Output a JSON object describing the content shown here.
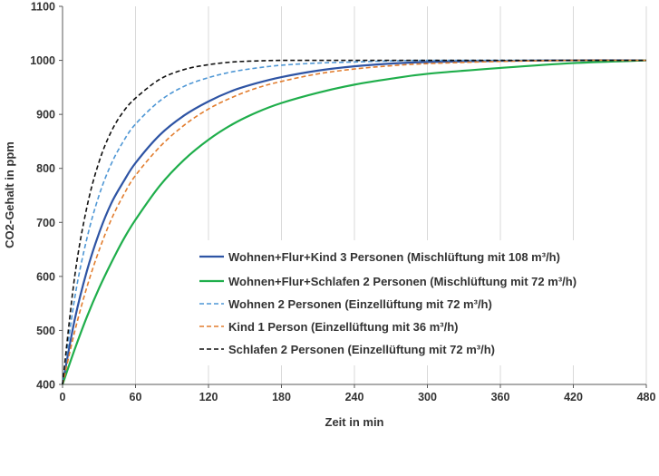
{
  "chart_data": {
    "type": "line",
    "title": "",
    "xlabel": "Zeit in min",
    "ylabel": "CO2-Gehalt in ppm",
    "xlim": [
      0,
      480
    ],
    "ylim": [
      400,
      1100
    ],
    "xticks": [
      0,
      60,
      120,
      180,
      240,
      300,
      360,
      420,
      480
    ],
    "yticks": [
      400,
      500,
      600,
      700,
      800,
      900,
      1000,
      1100
    ],
    "grid": {
      "vertical": true,
      "horizontal": false
    },
    "legend_position": "bottom-right",
    "series": [
      {
        "name": "Wohnen+Flur+Kind 3 Personen (Mischlüftung mit 108 m³/h)",
        "color": "#2e54a4",
        "style": "solid",
        "x": [
          0,
          10,
          20,
          30,
          40,
          50,
          60,
          80,
          100,
          120,
          140,
          160,
          180,
          210,
          240,
          270,
          300,
          360,
          420,
          480
        ],
        "y": [
          400,
          520,
          610,
          680,
          735,
          775,
          810,
          862,
          898,
          924,
          944,
          958,
          969,
          981,
          989,
          994,
          997,
          999,
          1000,
          1000
        ]
      },
      {
        "name": "Wohnen+Flur+Schlafen 2 Personen (Mischlüftung mit 72 m³/h)",
        "color": "#1fae4b",
        "style": "solid",
        "x": [
          0,
          10,
          20,
          30,
          40,
          50,
          60,
          80,
          100,
          120,
          140,
          160,
          180,
          210,
          240,
          270,
          300,
          360,
          420,
          480
        ],
        "y": [
          400,
          465,
          525,
          578,
          625,
          668,
          705,
          768,
          816,
          853,
          882,
          904,
          921,
          940,
          955,
          966,
          975,
          986,
          995,
          1000
        ]
      },
      {
        "name": "Wohnen 2 Personen (Einzellüftung mit 72 m³/h)",
        "color": "#4f97d5",
        "style": "dashed",
        "x": [
          0,
          10,
          20,
          30,
          40,
          50,
          60,
          80,
          100,
          120,
          140,
          160,
          180,
          210,
          240,
          270,
          300,
          360,
          420,
          480
        ],
        "y": [
          400,
          560,
          670,
          750,
          808,
          850,
          882,
          925,
          952,
          968,
          979,
          986,
          991,
          995,
          997,
          999,
          1000,
          1000,
          1000,
          1000
        ]
      },
      {
        "name": "Kind 1 Person (Einzellüftung mit 36 m³/h)",
        "color": "#e27d2e",
        "style": "dashed",
        "x": [
          0,
          10,
          20,
          30,
          40,
          50,
          60,
          80,
          100,
          120,
          140,
          160,
          180,
          210,
          240,
          270,
          300,
          360,
          420,
          480
        ],
        "y": [
          400,
          498,
          580,
          648,
          705,
          750,
          787,
          840,
          880,
          910,
          932,
          949,
          961,
          975,
          984,
          990,
          994,
          998,
          1000,
          1000
        ]
      },
      {
        "name": "Schlafen 2 Personen (Einzellüftung mit 72 m³/h)",
        "color": "#111111",
        "style": "dashed",
        "x": [
          0,
          10,
          20,
          30,
          40,
          50,
          60,
          80,
          100,
          120,
          140,
          160,
          180,
          210,
          240,
          270,
          300,
          360,
          420,
          480
        ],
        "y": [
          400,
          600,
          728,
          812,
          868,
          905,
          930,
          965,
          983,
          992,
          997,
          999,
          1000,
          1000,
          1000,
          1000,
          1000,
          1000,
          1000,
          1000
        ]
      }
    ]
  }
}
